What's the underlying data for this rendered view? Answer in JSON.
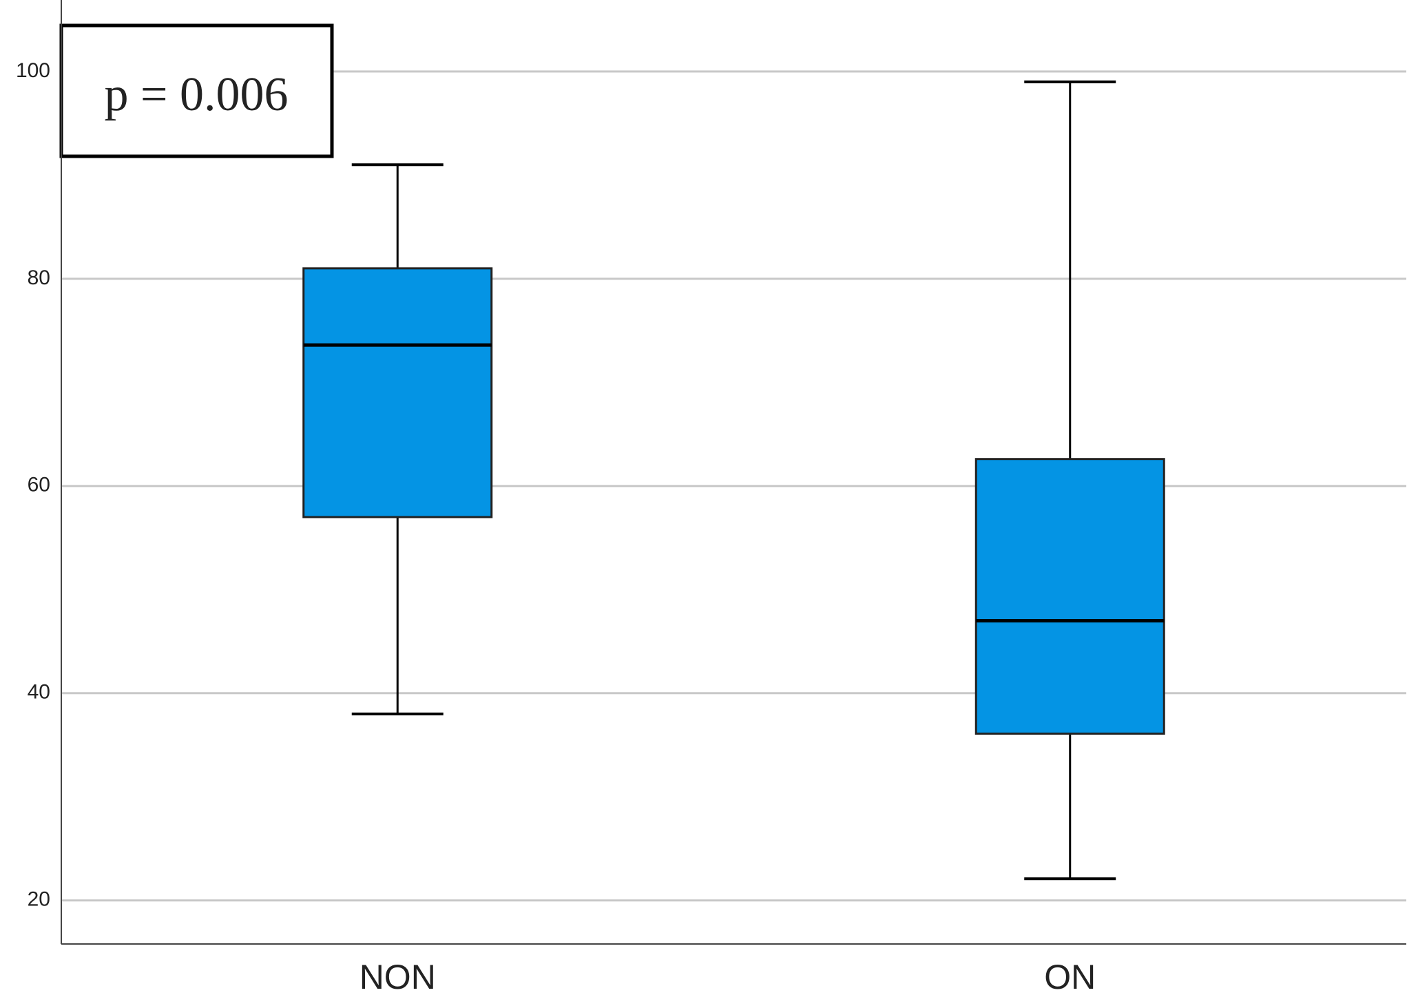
{
  "chart_data": {
    "type": "box",
    "annotation": "p = 0.006",
    "categories": [
      "NON",
      "ON"
    ],
    "boxes": [
      {
        "min": 38,
        "q1": 57,
        "median": 73.6,
        "q3": 81,
        "max": 91
      },
      {
        "min": 22.1,
        "q1": 36.1,
        "median": 47,
        "q3": 62.6,
        "max": 99
      }
    ],
    "color": "#0494e4",
    "ylim": [
      15.8,
      106.9
    ],
    "yticks": [
      20,
      40,
      60,
      80,
      100
    ],
    "grid": true
  }
}
